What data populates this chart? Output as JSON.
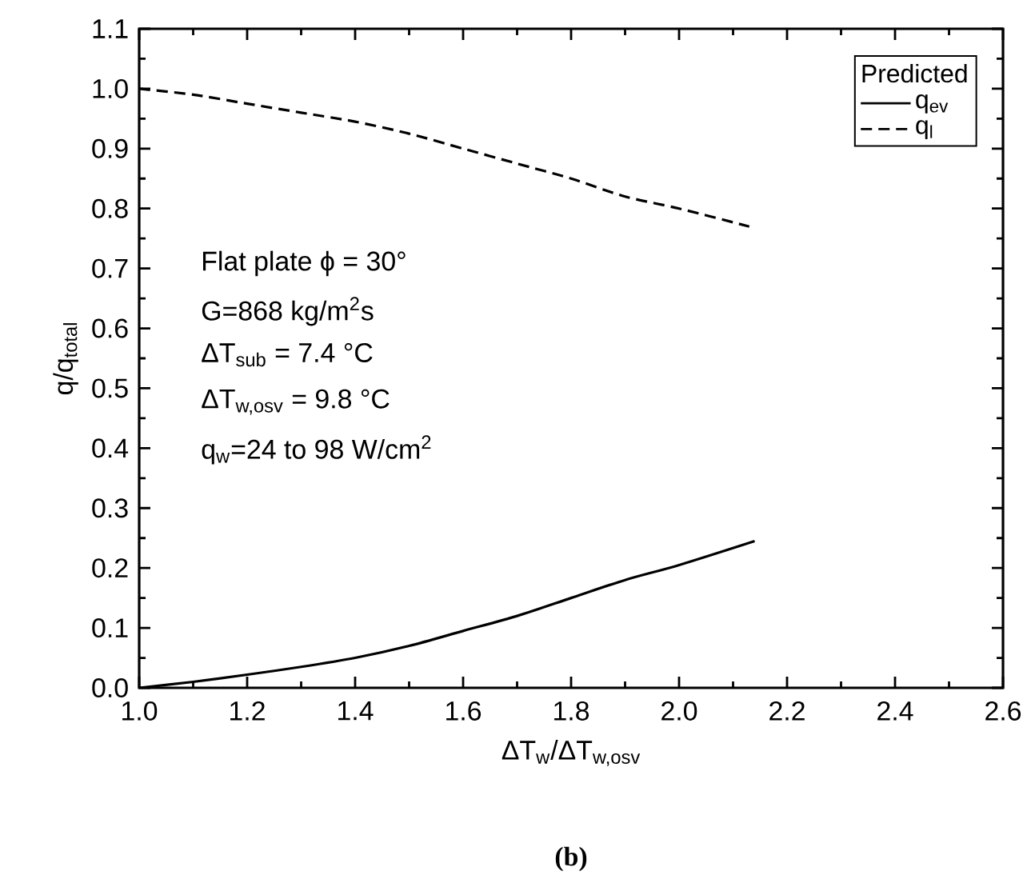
{
  "chart_data": {
    "type": "line",
    "xlabel": "ΔT$_{w}$/ΔT$_{w,osv}$",
    "ylabel": "q/q$_{total}$",
    "legend_title": "Predicted",
    "legend": "top right",
    "grid": false,
    "marker": "none",
    "xlim": [
      1.0,
      2.6
    ],
    "ylim": [
      0.0,
      1.1
    ],
    "xticks": [
      {
        "value": 1.0,
        "label": "1.0"
      },
      {
        "value": 1.2,
        "label": "1.2"
      },
      {
        "value": 1.4,
        "label": "1.4"
      },
      {
        "value": 1.6,
        "label": "1.6"
      },
      {
        "value": 1.8,
        "label": "1.8"
      },
      {
        "value": 2.0,
        "label": "2.0"
      },
      {
        "value": 2.2,
        "label": "2.2"
      },
      {
        "value": 2.4,
        "label": "2.4"
      },
      {
        "value": 2.6,
        "label": "2.6"
      }
    ],
    "yticks": [
      {
        "value": 0.0,
        "label": "0.0"
      },
      {
        "value": 0.1,
        "label": "0.1"
      },
      {
        "value": 0.2,
        "label": "0.2"
      },
      {
        "value": 0.3,
        "label": "0.3"
      },
      {
        "value": 0.4,
        "label": "0.4"
      },
      {
        "value": 0.5,
        "label": "0.5"
      },
      {
        "value": 0.6,
        "label": "0.6"
      },
      {
        "value": 0.7,
        "label": "0.7"
      },
      {
        "value": 0.8,
        "label": "0.8"
      },
      {
        "value": 0.9,
        "label": "0.9"
      },
      {
        "value": 1.0,
        "label": "1.0"
      },
      {
        "value": 1.1,
        "label": "1.1"
      }
    ],
    "series": [
      {
        "name": "q$_{ev}$",
        "color": "#000000",
        "line_style": "solid",
        "x": [
          1.0,
          1.1,
          1.2,
          1.3,
          1.4,
          1.5,
          1.6,
          1.7,
          1.8,
          1.9,
          2.0,
          2.14
        ],
        "values": [
          0.0,
          0.01,
          0.022,
          0.035,
          0.05,
          0.07,
          0.095,
          0.12,
          0.15,
          0.18,
          0.205,
          0.245
        ]
      },
      {
        "name": "q$_{l}$",
        "color": "#000000",
        "line_style": "dashed",
        "x": [
          1.0,
          1.1,
          1.2,
          1.3,
          1.4,
          1.5,
          1.6,
          1.7,
          1.8,
          1.9,
          2.0,
          2.13
        ],
        "values": [
          1.0,
          0.99,
          0.975,
          0.96,
          0.945,
          0.925,
          0.9,
          0.875,
          0.85,
          0.82,
          0.8,
          0.77
        ]
      }
    ],
    "annotations": [
      "Flat plate ϕ = 30°",
      "G=868 kg/m$^{2}$s",
      "ΔT$_{sub}$ = 7.4 °C",
      "ΔT$_{w,osv}$ = 9.8 °C",
      "q$_{w}$=24 to 98 W/cm$^{2}$",
      "(b)"
    ]
  }
}
